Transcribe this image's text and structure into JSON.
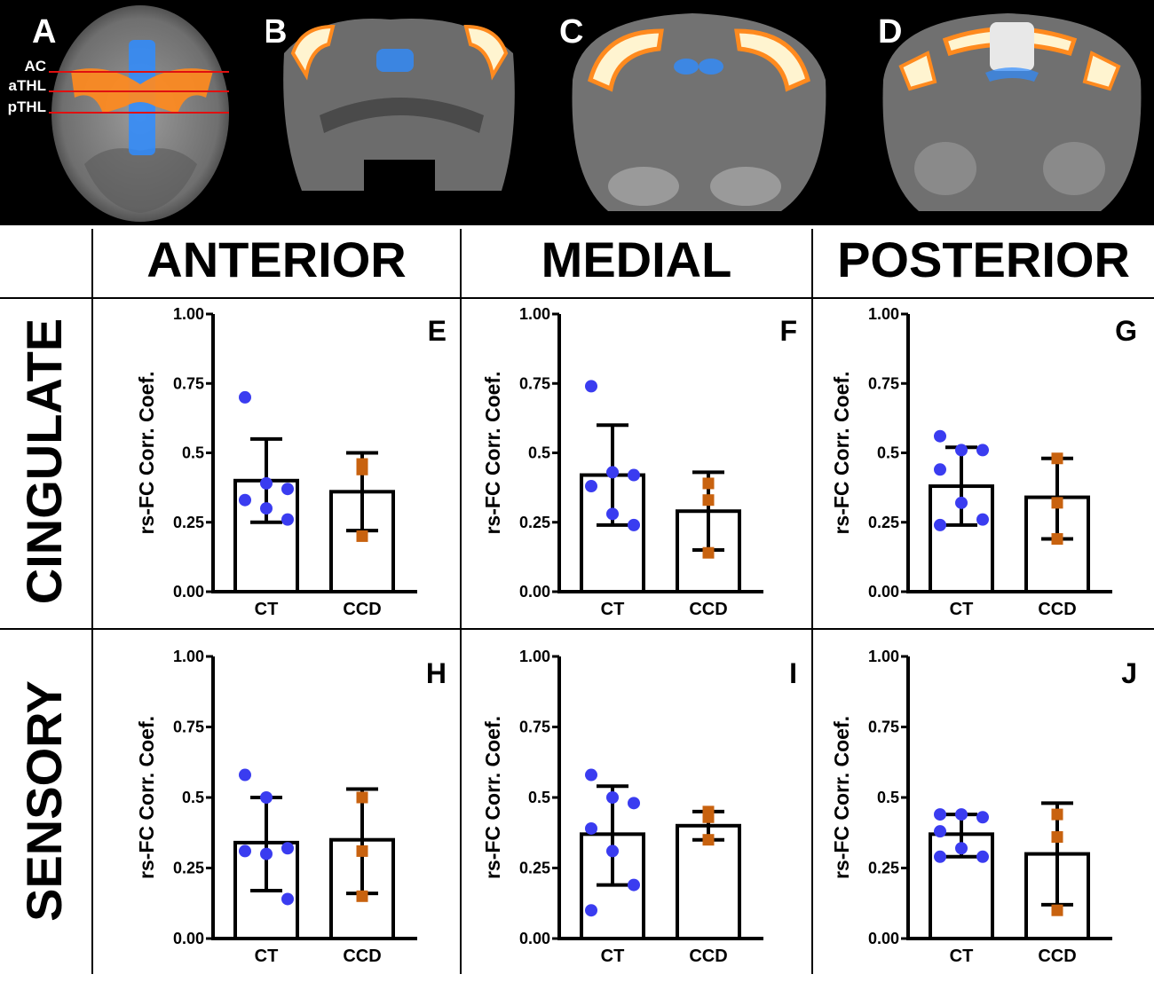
{
  "brain_panels": [
    {
      "letter": "A",
      "lines": [
        "AC",
        "aTHL",
        "pTHL"
      ]
    },
    {
      "letter": "B"
    },
    {
      "letter": "C"
    },
    {
      "letter": "D"
    }
  ],
  "columns": [
    "ANTERIOR",
    "MEDIAL",
    "POSTERIOR"
  ],
  "rows": [
    "CINGULATE",
    "SENSORY"
  ],
  "colors": {
    "ct": "#3a3cf0",
    "ccd": "#c8620f",
    "axis": "#000000"
  },
  "chart_data": [
    {
      "type": "bar",
      "panel": "E",
      "row": "CINGULATE",
      "column": "ANTERIOR",
      "ylabel": "rs-FC Corr. Coef.",
      "ylim": [
        0,
        1
      ],
      "yticks": [
        "0.00",
        "0.25",
        "0.5",
        "0.75",
        "1.00"
      ],
      "categories": [
        "CT",
        "CCD"
      ],
      "means": [
        0.4,
        0.36
      ],
      "sd_low": [
        0.25,
        0.22
      ],
      "sd_high": [
        0.55,
        0.5
      ],
      "points": [
        [
          0.7,
          0.39,
          0.37,
          0.33,
          0.3,
          0.26
        ],
        [
          0.46,
          0.44,
          0.2
        ]
      ]
    },
    {
      "type": "bar",
      "panel": "F",
      "row": "CINGULATE",
      "column": "MEDIAL",
      "ylabel": "rs-FC Corr. Coef.",
      "ylim": [
        0,
        1
      ],
      "yticks": [
        "0.00",
        "0.25",
        "0.5",
        "0.75",
        "1.00"
      ],
      "categories": [
        "CT",
        "CCD"
      ],
      "means": [
        0.42,
        0.29
      ],
      "sd_low": [
        0.24,
        0.15
      ],
      "sd_high": [
        0.6,
        0.43
      ],
      "points": [
        [
          0.74,
          0.43,
          0.42,
          0.38,
          0.28,
          0.24
        ],
        [
          0.39,
          0.33,
          0.14
        ]
      ]
    },
    {
      "type": "bar",
      "panel": "G",
      "row": "CINGULATE",
      "column": "POSTERIOR",
      "ylabel": "rs-FC Corr. Coef.",
      "ylim": [
        0,
        1
      ],
      "yticks": [
        "0.00",
        "0.25",
        "0.5",
        "0.75",
        "1.00"
      ],
      "categories": [
        "CT",
        "CCD"
      ],
      "means": [
        0.38,
        0.34
      ],
      "sd_low": [
        0.24,
        0.19
      ],
      "sd_high": [
        0.52,
        0.48
      ],
      "points": [
        [
          0.56,
          0.51,
          0.51,
          0.44,
          0.32,
          0.26,
          0.24
        ],
        [
          0.48,
          0.32,
          0.19
        ]
      ]
    },
    {
      "type": "bar",
      "panel": "H",
      "row": "SENSORY",
      "column": "ANTERIOR",
      "ylabel": "rs-FC Corr. Coef.",
      "ylim": [
        0,
        1
      ],
      "yticks": [
        "0.00",
        "0.25",
        "0.5",
        "0.75",
        "1.00"
      ],
      "categories": [
        "CT",
        "CCD"
      ],
      "means": [
        0.34,
        0.35
      ],
      "sd_low": [
        0.17,
        0.16
      ],
      "sd_high": [
        0.5,
        0.53
      ],
      "points": [
        [
          0.58,
          0.5,
          0.32,
          0.31,
          0.3,
          0.14
        ],
        [
          0.5,
          0.31,
          0.15
        ]
      ]
    },
    {
      "type": "bar",
      "panel": "I",
      "row": "SENSORY",
      "column": "MEDIAL",
      "ylabel": "rs-FC Corr. Coef.",
      "ylim": [
        0,
        1
      ],
      "yticks": [
        "0.00",
        "0.25",
        "0.5",
        "0.75",
        "1.00"
      ],
      "categories": [
        "CT",
        "CCD"
      ],
      "means": [
        0.37,
        0.4
      ],
      "sd_low": [
        0.19,
        0.35
      ],
      "sd_high": [
        0.54,
        0.45
      ],
      "points": [
        [
          0.58,
          0.5,
          0.48,
          0.39,
          0.31,
          0.19,
          0.1
        ],
        [
          0.45,
          0.43,
          0.35
        ]
      ]
    },
    {
      "type": "bar",
      "panel": "J",
      "row": "SENSORY",
      "column": "POSTERIOR",
      "ylabel": "rs-FC Corr. Coef.",
      "ylim": [
        0,
        1
      ],
      "yticks": [
        "0.00",
        "0.25",
        "0.5",
        "0.75",
        "1.00"
      ],
      "categories": [
        "CT",
        "CCD"
      ],
      "means": [
        0.37,
        0.3
      ],
      "sd_low": [
        0.29,
        0.12
      ],
      "sd_high": [
        0.44,
        0.48
      ],
      "points": [
        [
          0.44,
          0.44,
          0.43,
          0.38,
          0.32,
          0.29,
          0.29
        ],
        [
          0.44,
          0.36,
          0.1
        ]
      ]
    }
  ]
}
